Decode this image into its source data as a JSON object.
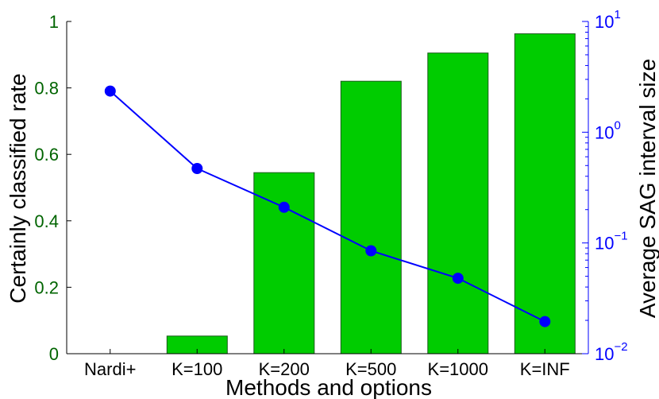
{
  "chart_data": {
    "type": "bar+line",
    "categories": [
      "Nardi+",
      "K=100",
      "K=200",
      "K=500",
      "K=1000",
      "K=INF"
    ],
    "bars": {
      "axis": "left",
      "values": [
        0,
        0.053,
        0.545,
        0.82,
        0.905,
        0.963
      ],
      "color": "#00cc00"
    },
    "line": {
      "axis": "right",
      "values": [
        2.35,
        0.47,
        0.21,
        0.085,
        0.048,
        0.0195
      ],
      "color": "#0000ff",
      "marker": "circle"
    },
    "xlabel": "Methods and options",
    "ylabel_left": "Certainly classified rate",
    "ylabel_right": "Average SAG interval size",
    "ylim_left": [
      0,
      1
    ],
    "ylim_right": [
      0.01,
      10
    ],
    "yscale_right": "log",
    "yticks_left": [
      "0",
      "0.2",
      "0.4",
      "0.6",
      "0.8",
      "1"
    ],
    "yticks_right": [
      {
        "base": "10",
        "exp": "−2",
        "value": 0.01
      },
      {
        "base": "10",
        "exp": "−1",
        "value": 0.1
      },
      {
        "base": "10",
        "exp": "0",
        "value": 1
      },
      {
        "base": "10",
        "exp": "1",
        "value": 10
      }
    ],
    "grid": false,
    "colors": {
      "left_axis": "#006400",
      "right_axis": "#0000ff",
      "bar_edge": "#1a5c1a"
    }
  }
}
